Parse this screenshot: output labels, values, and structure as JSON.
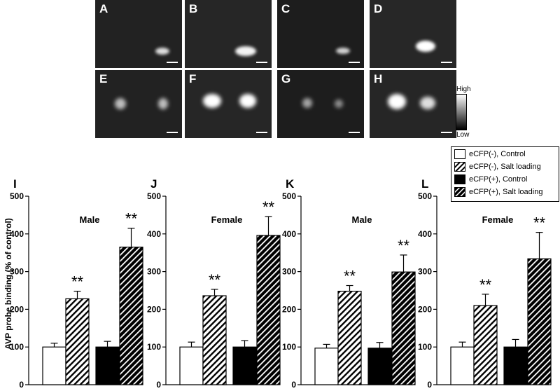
{
  "image_panels": {
    "labels": [
      "A",
      "B",
      "C",
      "D",
      "E",
      "F",
      "G",
      "H"
    ],
    "colorbar": {
      "high_label": "High",
      "low_label": "Low"
    }
  },
  "legend": {
    "entries": [
      {
        "label": "eCFP(-), Control",
        "fill": "white"
      },
      {
        "label": "eCFP(-), Salt loading",
        "fill": "hatch-white"
      },
      {
        "label": "eCFP(+), Control",
        "fill": "black"
      },
      {
        "label": "eCFP(+), Salt loading",
        "fill": "hatch-black"
      }
    ]
  },
  "ylabel": "AVP probe binding (% of control)",
  "chart_data": [
    {
      "type": "bar",
      "panel": "I",
      "group_label": "Male",
      "categories": [
        "eCFP(-), Control",
        "eCFP(-), Salt loading",
        "eCFP(+), Control",
        "eCFP(+), Salt loading"
      ],
      "values": [
        100,
        228,
        100,
        365
      ],
      "errors": [
        10,
        20,
        15,
        50
      ],
      "significance": [
        "",
        "**",
        "",
        "**"
      ],
      "ylim": [
        0,
        500
      ],
      "yticks": [
        "0",
        "100",
        "200",
        "300",
        "400",
        "500"
      ]
    },
    {
      "type": "bar",
      "panel": "J",
      "group_label": "Female",
      "categories": [
        "eCFP(-), Control",
        "eCFP(-), Salt loading",
        "eCFP(+), Control",
        "eCFP(+), Salt loading"
      ],
      "values": [
        100,
        236,
        100,
        396
      ],
      "errors": [
        13,
        17,
        17,
        50
      ],
      "significance": [
        "",
        "**",
        "",
        "**"
      ],
      "ylim": [
        0,
        500
      ],
      "yticks": [
        "0",
        "100",
        "200",
        "300",
        "400",
        "500"
      ]
    },
    {
      "type": "bar",
      "panel": "K",
      "group_label": "Male",
      "categories": [
        "eCFP(-), Control",
        "eCFP(-), Salt loading",
        "eCFP(+), Control",
        "eCFP(+), Salt loading"
      ],
      "values": [
        97,
        248,
        97,
        299
      ],
      "errors": [
        10,
        15,
        15,
        45
      ],
      "significance": [
        "",
        "**",
        "",
        "**"
      ],
      "ylim": [
        0,
        500
      ],
      "yticks": [
        "0",
        "100",
        "200",
        "300",
        "400",
        "500"
      ]
    },
    {
      "type": "bar",
      "panel": "L",
      "group_label": "Female",
      "categories": [
        "eCFP(-), Control",
        "eCFP(-), Salt loading",
        "eCFP(+), Control",
        "eCFP(+), Salt loading"
      ],
      "values": [
        100,
        210,
        100,
        334
      ],
      "errors": [
        13,
        30,
        20,
        70
      ],
      "significance": [
        "",
        "**",
        "",
        "**"
      ],
      "ylim": [
        0,
        500
      ],
      "yticks": [
        "0",
        "100",
        "200",
        "300",
        "400",
        "500"
      ]
    }
  ]
}
